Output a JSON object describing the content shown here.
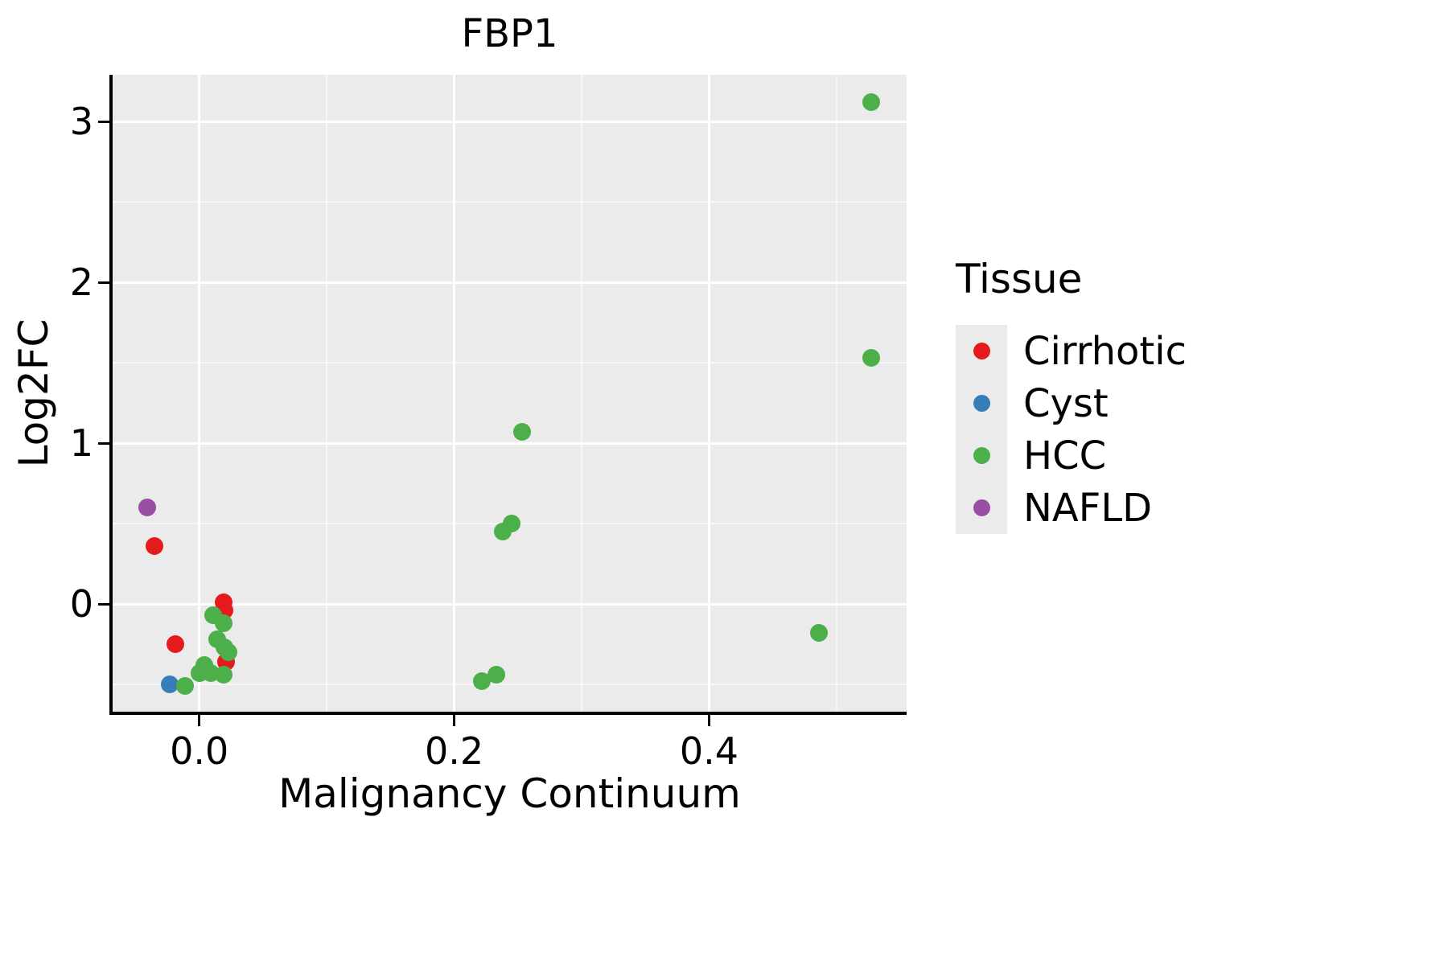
{
  "chart_data": {
    "type": "scatter",
    "title": "FBP1",
    "xlabel": "Malignancy Continuum",
    "ylabel": "Log2FC",
    "legend_title": "Tissue",
    "legend_position": "right",
    "grid": true,
    "panel_bg": "#ebebeb",
    "grid_color": "#ffffff",
    "axis_color": "#000000",
    "xlim": [
      -0.068,
      0.555
    ],
    "ylim": [
      -0.67,
      3.29
    ],
    "xticks": {
      "values": [
        0.0,
        0.2,
        0.4
      ],
      "labels": [
        "0.0",
        "0.2",
        "0.4"
      ]
    },
    "yticks": {
      "values": [
        0,
        1,
        2,
        3
      ],
      "labels": [
        "0",
        "1",
        "2",
        "3"
      ]
    },
    "xticks_minor": [
      0.1,
      0.3,
      0.5
    ],
    "yticks_minor": [
      -0.5,
      0.5,
      1.5,
      2.5
    ],
    "series": [
      {
        "name": "Cirrhotic",
        "color": "#e41a1c",
        "points": [
          [
            -0.035,
            0.36
          ],
          [
            0.019,
            0.01
          ],
          [
            0.02,
            -0.04
          ],
          [
            -0.019,
            -0.25
          ],
          [
            0.021,
            -0.36
          ]
        ]
      },
      {
        "name": "Cyst",
        "color": "#377eb8",
        "points": [
          [
            -0.023,
            -0.5
          ]
        ]
      },
      {
        "name": "HCC",
        "color": "#4daf4a",
        "points": [
          [
            0.527,
            3.12
          ],
          [
            0.527,
            1.53
          ],
          [
            0.253,
            1.07
          ],
          [
            0.245,
            0.5
          ],
          [
            0.238,
            0.45
          ],
          [
            0.011,
            -0.07
          ],
          [
            0.019,
            -0.12
          ],
          [
            0.014,
            -0.22
          ],
          [
            0.02,
            -0.27
          ],
          [
            0.023,
            -0.3
          ],
          [
            0.004,
            -0.38
          ],
          [
            0.0,
            -0.43
          ],
          [
            0.009,
            -0.43
          ],
          [
            0.019,
            -0.44
          ],
          [
            -0.011,
            -0.51
          ],
          [
            0.222,
            -0.48
          ],
          [
            0.233,
            -0.44
          ],
          [
            0.486,
            -0.18
          ]
        ]
      },
      {
        "name": "NAFLD",
        "color": "#984ea3",
        "points": [
          [
            -0.041,
            0.6
          ]
        ]
      }
    ]
  }
}
